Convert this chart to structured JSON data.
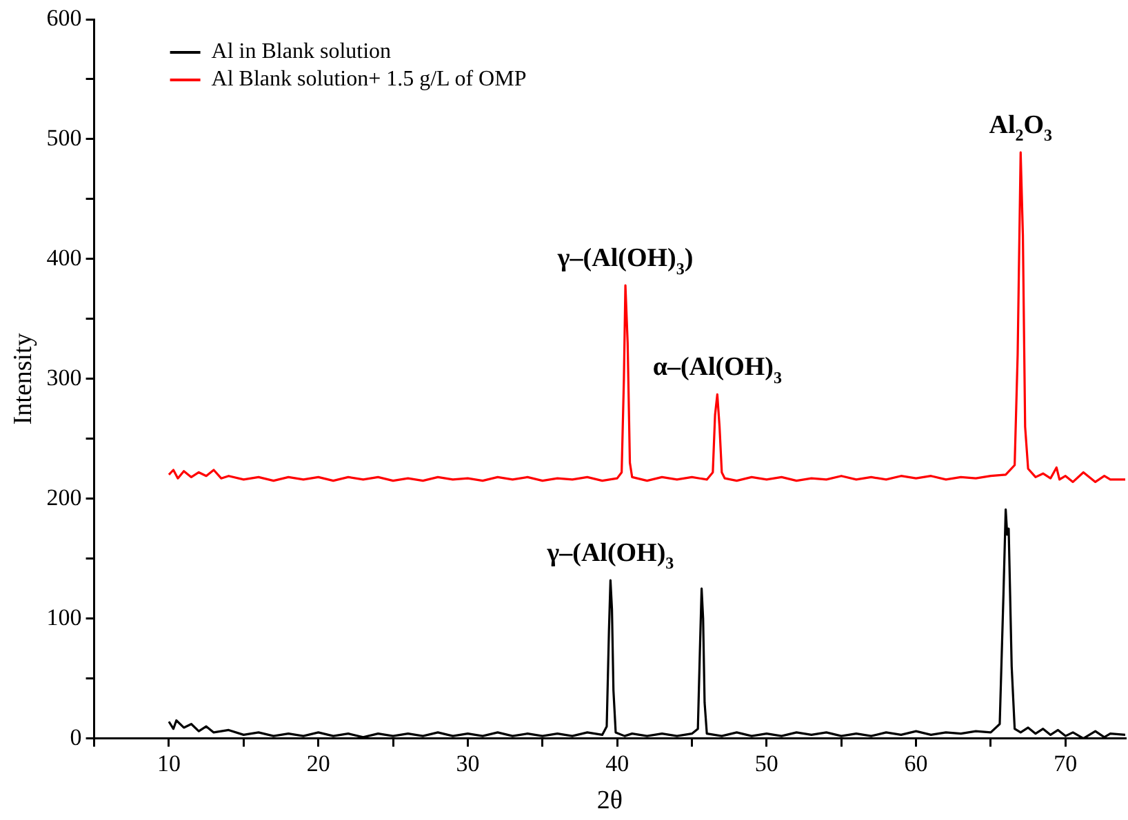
{
  "chart_data": {
    "type": "line",
    "xlabel": "2θ",
    "ylabel": "Intensity",
    "xlim": [
      5,
      74
    ],
    "ylim": [
      0,
      600
    ],
    "xticks": [
      {
        "value": 5,
        "label": null
      },
      10,
      {
        "value": 15,
        "label": null
      },
      20,
      {
        "value": 25,
        "label": null
      },
      30,
      {
        "value": 35,
        "label": null
      },
      40,
      {
        "value": 45,
        "label": null
      },
      50,
      {
        "value": 55,
        "label": null
      },
      60,
      {
        "value": 65,
        "label": null
      },
      70
    ],
    "yticks": [
      0,
      {
        "value": 50,
        "label": null
      },
      100,
      {
        "value": 150,
        "label": null
      },
      200,
      {
        "value": 250,
        "label": null
      },
      300,
      {
        "value": 350,
        "label": null
      },
      400,
      {
        "value": 450,
        "label": null
      },
      500,
      {
        "value": 550,
        "label": null
      },
      600
    ],
    "grid": false,
    "legend": "top left",
    "marker": "none",
    "line_style": "solid",
    "series": [
      {
        "name": "Al in Blank solution",
        "color": "#000000",
        "x": [
          10,
          10.3,
          10.5,
          11,
          11.5,
          12,
          12.5,
          13,
          14,
          15,
          16,
          17,
          18,
          19,
          20,
          21,
          22,
          23,
          24,
          25,
          26,
          27,
          28,
          29,
          30,
          31,
          32,
          33,
          34,
          35,
          36,
          37,
          38,
          39,
          39.3,
          39.45,
          39.55,
          39.65,
          39.75,
          39.9,
          40.5,
          41,
          42,
          43,
          44,
          45,
          45.4,
          45.55,
          45.65,
          45.75,
          45.85,
          46,
          47,
          48,
          49,
          50,
          51,
          52,
          53,
          54,
          55,
          56,
          57,
          58,
          59,
          60,
          61,
          62,
          63,
          64,
          65,
          65.6,
          65.85,
          66.0,
          66.1,
          66.2,
          66.4,
          66.6,
          67,
          67.5,
          68,
          68.5,
          69,
          69.5,
          70,
          70.5,
          71.2,
          72,
          72.6,
          73,
          74
        ],
        "values": [
          14,
          8,
          15,
          9,
          12,
          6,
          10,
          5,
          7,
          3,
          5,
          2,
          4,
          2,
          5,
          2,
          4,
          1,
          4,
          2,
          4,
          2,
          5,
          2,
          4,
          2,
          5,
          2,
          4,
          2,
          4,
          2,
          5,
          3,
          10,
          90,
          132,
          108,
          40,
          5,
          2,
          4,
          2,
          4,
          2,
          4,
          8,
          80,
          125,
          100,
          30,
          4,
          2,
          5,
          2,
          4,
          2,
          5,
          3,
          5,
          2,
          4,
          2,
          5,
          3,
          6,
          3,
          5,
          4,
          6,
          5,
          12,
          120,
          191,
          170,
          175,
          60,
          8,
          5,
          9,
          4,
          8,
          3,
          7,
          2,
          5,
          0,
          6,
          1,
          4,
          3
        ]
      },
      {
        "name": "Al Blank solution+ 1.5 g/L of OMP",
        "color": "#ff0000",
        "x": [
          10,
          10.3,
          10.6,
          11,
          11.5,
          12,
          12.5,
          13,
          13.5,
          14,
          15,
          16,
          17,
          18,
          19,
          20,
          21,
          22,
          23,
          24,
          25,
          26,
          27,
          28,
          29,
          30,
          31,
          32,
          33,
          34,
          35,
          36,
          37,
          38,
          39,
          40,
          40.3,
          40.45,
          40.55,
          40.7,
          40.85,
          41,
          42,
          43,
          44,
          45,
          46,
          46.4,
          46.55,
          46.7,
          46.85,
          47,
          47.2,
          48,
          49,
          50,
          51,
          52,
          53,
          54,
          55,
          56,
          57,
          58,
          59,
          60,
          61,
          62,
          63,
          64,
          65,
          66,
          66.6,
          66.8,
          67,
          67.15,
          67.3,
          67.5,
          68,
          68.5,
          69,
          69.4,
          69.6,
          70,
          70.5,
          71.2,
          72,
          72.6,
          73,
          74
        ],
        "values": [
          220,
          224,
          217,
          223,
          218,
          222,
          219,
          224,
          217,
          219,
          216,
          218,
          215,
          218,
          216,
          218,
          215,
          218,
          216,
          218,
          215,
          217,
          215,
          218,
          216,
          217,
          215,
          218,
          216,
          218,
          215,
          217,
          216,
          218,
          215,
          217,
          222,
          300,
          378,
          330,
          230,
          218,
          215,
          218,
          216,
          218,
          216,
          222,
          270,
          287,
          260,
          222,
          217,
          215,
          218,
          216,
          218,
          215,
          217,
          216,
          219,
          216,
          218,
          216,
          219,
          217,
          219,
          216,
          218,
          217,
          219,
          220,
          228,
          320,
          489,
          420,
          260,
          225,
          218,
          221,
          217,
          226,
          216,
          219,
          214,
          222,
          214,
          219,
          216,
          216
        ]
      }
    ],
    "annotations": [
      {
        "text": "γ–(Al(OH)$_{3}$)",
        "x": 40.55,
        "y": 378
      },
      {
        "text": "α–(Al(OH)$_{3}$",
        "x": 46.7,
        "y": 287
      },
      {
        "text": "Al$_{2}$O$_{3}$",
        "x": 67,
        "y": 489
      },
      {
        "text": "γ–(Al(OH)$_{3}$",
        "x": 39.55,
        "y": 132
      }
    ]
  }
}
